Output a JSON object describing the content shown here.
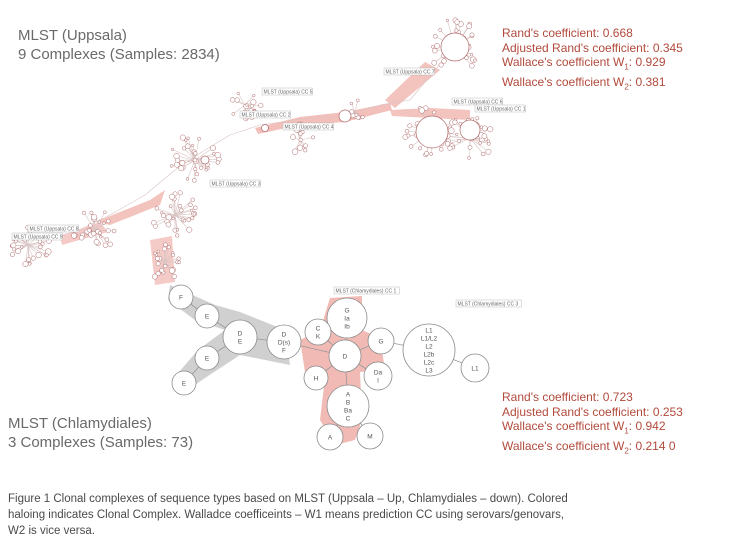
{
  "uppsala": {
    "title_line1": "MLST (Uppsala)",
    "title_line2": "9 Complexes (Samples: 2834)",
    "stats": {
      "rand": "Rand's coefficient: 0.668",
      "adjusted_rand": "Adjusted Rand's coefficient: 0.345",
      "w1_prefix": "Wallace's coefficient W",
      "w1_sub": "1",
      "w1_value": ": 0.929",
      "w2_prefix": "Wallace's coefficient W",
      "w2_sub": "2",
      "w2_value": ": 0.381"
    },
    "cc_labels": [
      "MLST (Uppsala) CC 7",
      "MLST (Uppsala) CC 5",
      "MLST (Uppsala) CC 2",
      "MLST (Uppsala) CC 4",
      "MLST (Uppsala) CC 6",
      "MLST (Uppsala) CC 1",
      "MLST (Uppsala) CC 3",
      "MLST (Uppsala) CC 8",
      "MLST (Uppsala) CC 9"
    ]
  },
  "chlamydiales": {
    "title_line1": "MLST (Chlamydiales)",
    "title_line2": "3 Complexes (Samples: 73)",
    "stats": {
      "rand": "Rand's coefficient: 0.723",
      "adjusted_rand": "Adjusted Rand's coefficient: 0.253",
      "w1_prefix": "Wallace's coefficient W",
      "w1_sub": "1",
      "w1_value": ": 0.942",
      "w2_prefix": "Wallace's coefficient W",
      "w2_sub": "2",
      "w2_value": ": 0.214 0"
    },
    "cc_labels": [
      "MLST (Chlamydiales) CC 1",
      "MLST (Chlamydiales) CC 3"
    ],
    "nodes": {
      "gray": [
        "F",
        "E",
        "D\nE",
        "D\nD(s)\nF",
        "E",
        "E"
      ],
      "red": [
        "G\nIa\nIb",
        "C\nK",
        "D",
        "G",
        "Da\nI",
        "H",
        "A\nB\nBa\nC",
        "A",
        "M"
      ],
      "plain": [
        "L1\nL1/L2\nL2\nL2b\nL2c\nL3",
        "L1"
      ]
    }
  },
  "caption": {
    "line1": "Figure 1 Clonal complexes of sequence types based on MLST (Uppsala – Up, Chlamydiales – down). Colored",
    "line2": "haloing indicates Clonal Complex. Walladce coefficeints – W1 means prediction CC using serovars/genovars,",
    "line3": "W2 is vice versa."
  },
  "colors": {
    "halo_red": "#eea9a3",
    "halo_gray": "#c8c8c8",
    "node_stroke": "#b06a6a",
    "stats_text": "#b24a3c",
    "title_text": "#6a6a6a"
  }
}
